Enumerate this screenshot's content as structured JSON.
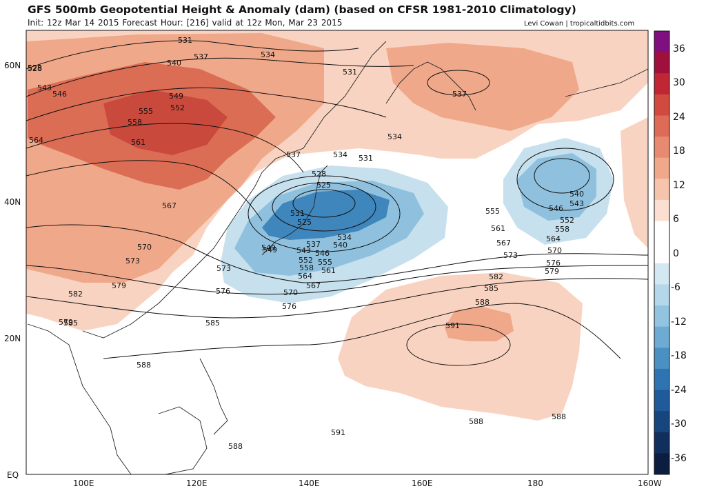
{
  "title": "GFS 500mb Geopotential Height & Anomaly (dam) (based on CFSR 1981-2010 Climatology)",
  "subtitle": "Init: 12z Mar 14 2015   Forecast Hour: [216]   valid at 12z Mon, Mar 23 2015",
  "credit": "Levi Cowan | tropicaltidbits.com",
  "map": {
    "lat_labels": [
      "60N",
      "40N",
      "20N",
      "EQ"
    ],
    "lon_labels": [
      "100E",
      "120E",
      "140E",
      "160E",
      "180",
      "160W"
    ],
    "colors": {
      "warm_light": "#f9d3c1",
      "warm_mid": "#f0a88a",
      "warm_strong": "#dc6d55",
      "cool_light": "#c6e0ee",
      "cool_mid": "#8fc1de",
      "cool_strong": "#3f86bd",
      "coastline": "#222222",
      "contour": "#111111"
    },
    "contour_labels": [
      "528",
      "531",
      "534",
      "537",
      "540",
      "543",
      "546",
      "549",
      "552",
      "555",
      "558",
      "561",
      "564",
      "567",
      "570",
      "573",
      "576",
      "579",
      "582",
      "585",
      "588",
      "591",
      "528",
      "531",
      "534",
      "537",
      "540",
      "543",
      "546",
      "549",
      "552",
      "555",
      "558",
      "561",
      "564",
      "567",
      "570",
      "573",
      "576",
      "579",
      "582",
      "585",
      "588",
      "528",
      "531",
      "534",
      "537",
      "525",
      "525",
      "531",
      "534",
      "537",
      "540",
      "543",
      "546",
      "549",
      "552",
      "555",
      "558",
      "561",
      "564",
      "567",
      "570",
      "573",
      "576",
      "579",
      "585",
      "588",
      "591",
      "588",
      "588",
      "588",
      "588"
    ]
  },
  "colorbar": {
    "labels": [
      "36",
      "30",
      "24",
      "18",
      "12",
      "6",
      "0",
      "-6",
      "-12",
      "-18",
      "-24",
      "-30",
      "-36"
    ],
    "colors": [
      "#80107f",
      "#a0103c",
      "#c02634",
      "#d04a3f",
      "#de6b55",
      "#e88a70",
      "#f0a88a",
      "#f6c4ac",
      "#fbe0d2",
      "#ffffff",
      "#ffffff",
      "#d4e8f2",
      "#b4d7ea",
      "#92c3df",
      "#6eabd2",
      "#4b90c3",
      "#2f74b2",
      "#1f5a9b",
      "#17457d",
      "#102f5c",
      "#0b1e3f"
    ]
  }
}
